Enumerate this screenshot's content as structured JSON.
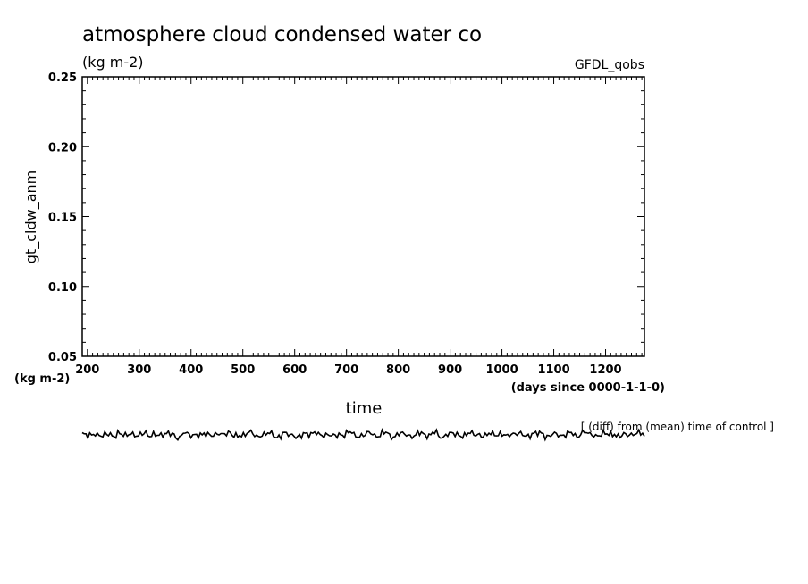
{
  "chart_data": {
    "type": "line",
    "title": "atmosphere cloud condensed water co",
    "unit_label": "(kg m-2)",
    "source_label": "GFDL_qobs",
    "ylabel": "gt_cldw_anm",
    "y_unit_label": "(kg m-2)",
    "xlabel": "time",
    "x_unit_label": "(days since 0000-1-1-0)",
    "diff_note": "[ (diff) from (mean) time of control ]",
    "xlim": [
      190,
      1275
    ],
    "ylim": [
      0.05,
      0.25
    ],
    "x_ticks": [
      200,
      300,
      400,
      500,
      600,
      700,
      800,
      900,
      1000,
      1100,
      1200
    ],
    "y_ticks": [
      "0.05",
      "0.10",
      "0.15",
      "0.20",
      "0.25"
    ],
    "grid": false,
    "series": [
      {
        "values_note": "",
        "x_start": 190,
        "x_end": 1275,
        "trend": [
          0.0,
          0.2,
          -0.3,
          0.4,
          -0.5,
          0.3,
          0.1,
          -0.2,
          0.5,
          -0.4,
          0.2,
          0.0,
          0.3,
          -0.6,
          0.4,
          0.1,
          -0.2,
          0.3,
          -0.1,
          0.2,
          0.5,
          -0.3,
          0.1,
          0.4,
          -0.2,
          0.0,
          0.3,
          -0.4,
          0.2,
          0.1,
          -0.5,
          0.3,
          0.4,
          -0.1,
          0.2,
          -0.3,
          0.1,
          0.5,
          -0.2,
          0.0,
          0.3,
          -0.1,
          0.4,
          -0.3,
          0.2,
          0.1,
          -0.2,
          0.3,
          0.0,
          0.5,
          -0.4,
          0.2,
          0.1,
          -0.1,
          0.3,
          0.2,
          -0.3,
          0.4,
          0.0,
          -0.2,
          0.3,
          0.1,
          -0.1,
          0.2,
          0.4,
          -0.3,
          0.1,
          0.0,
          0.3,
          -0.2,
          0.5,
          0.1,
          -0.1,
          0.2,
          0.3,
          -0.4,
          0.2,
          0.1,
          0.4,
          -0.1
        ]
      }
    ]
  }
}
